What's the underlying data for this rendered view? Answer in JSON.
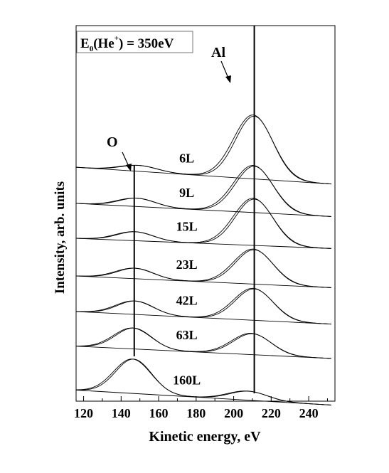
{
  "chart_data": {
    "type": "line",
    "title": "",
    "xlabel": "Kinetic energy, eV",
    "ylabel": "Intensity, arb. units",
    "xlim": [
      116,
      254
    ],
    "xticks": [
      120,
      140,
      160,
      180,
      200,
      220,
      240
    ],
    "grid": false,
    "legend": "none",
    "annotations": {
      "energy_line1": "E",
      "energy_sub": "0",
      "energy_line2": "(He",
      "energy_sup": "+",
      "energy_line3": ") = 350eV",
      "al_label": "Al",
      "o_label": "O"
    },
    "reference_lines_x": [
      147,
      211
    ],
    "series": [
      {
        "name": "6L",
        "offset": 6,
        "baseline": [
          0.83,
          0.27
        ],
        "o": 0.2,
        "al": 2.1,
        "o_center": 149,
        "al_center": 211
      },
      {
        "name": "9L",
        "offset": 5,
        "baseline": [
          0.62,
          0.18
        ],
        "o": 0.28,
        "al": 1.55,
        "o_center": 148,
        "al_center": 211
      },
      {
        "name": "15L",
        "offset": 4,
        "baseline": [
          0.45,
          0.11
        ],
        "o": 0.3,
        "al": 1.55,
        "o_center": 147,
        "al_center": 211
      },
      {
        "name": "23L",
        "offset": 3,
        "baseline": [
          0.19,
          -0.2
        ],
        "o": 0.35,
        "al": 1.15,
        "o_center": 147,
        "al_center": 211
      },
      {
        "name": "42L",
        "offset": 2,
        "baseline": [
          0.0,
          -0.42
        ],
        "o": 0.45,
        "al": 1.05,
        "o_center": 147,
        "al_center": 211
      },
      {
        "name": "63L",
        "offset": 1,
        "baseline": [
          -0.16,
          -0.57
        ],
        "o": 0.7,
        "al": 0.7,
        "o_center": 146,
        "al_center": 210
      },
      {
        "name": "160L",
        "offset": 0,
        "baseline": [
          -0.63,
          -1.13
        ],
        "o": 1.15,
        "al": 0.3,
        "o_center": 146,
        "al_center": 208
      }
    ]
  }
}
